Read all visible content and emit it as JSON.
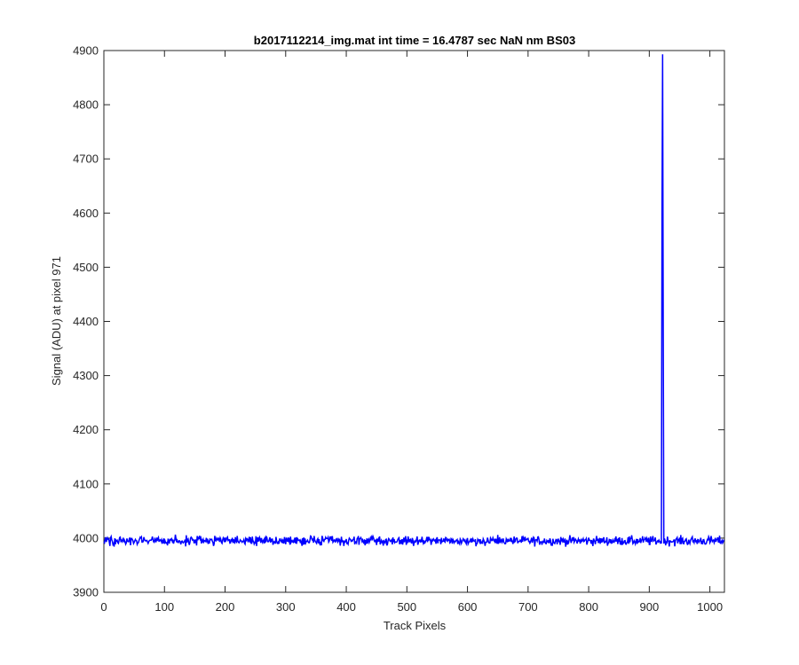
{
  "chart_data": {
    "type": "line",
    "title": "b2017112214_img.mat int time = 16.4787 sec  NaN nm BS03",
    "xlabel": "Track Pixels",
    "ylabel": "Signal (ADU) at pixel 971",
    "xlim": [
      0,
      1024
    ],
    "ylim": [
      3900,
      4900
    ],
    "xticks": [
      0,
      100,
      200,
      300,
      400,
      500,
      600,
      700,
      800,
      900,
      1000
    ],
    "yticks": [
      3900,
      4000,
      4100,
      4200,
      4300,
      4400,
      4500,
      4600,
      4700,
      4800,
      4900
    ],
    "grid": false,
    "line_color": "#0000ff",
    "series": [
      {
        "baseline": 3995,
        "noise_amplitude": 12,
        "n_points": 1024,
        "spike": {
          "x": [
            920,
            921,
            922,
            923,
            924
          ],
          "y": [
            3990,
            4600,
            4893,
            4400,
            3990
          ]
        }
      }
    ]
  }
}
